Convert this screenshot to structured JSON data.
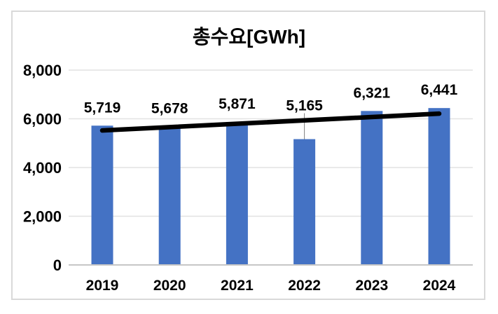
{
  "chart_data": {
    "type": "bar",
    "title": "총수요[GWh]",
    "categories": [
      "2019",
      "2020",
      "2021",
      "2022",
      "2023",
      "2024"
    ],
    "values": [
      5719,
      5678,
      5871,
      5165,
      6321,
      6441
    ],
    "data_labels": [
      "5,719",
      "5,678",
      "5,871",
      "5,165",
      "6,321",
      "6,441"
    ],
    "xlabel": "",
    "ylabel": "",
    "ylim": [
      0,
      8000
    ],
    "ytick_interval": 2000,
    "ytick_values": [
      0,
      2000,
      4000,
      6000,
      8000
    ],
    "ytick_labels": [
      "0",
      "2,000",
      "4,000",
      "6,000",
      "8,000"
    ],
    "grid": "horizontal",
    "legend": "none",
    "trendline": {
      "type": "linear"
    },
    "label_leader_line_category": "2022"
  },
  "colors": {
    "bar": "#4472C4",
    "gridline": "#E2E2E2",
    "axis_line": "#C6C6C6",
    "border": "#D9D9D9",
    "text": "#000000",
    "trendline": "#000000",
    "leader_line": "#7F7F7F"
  }
}
